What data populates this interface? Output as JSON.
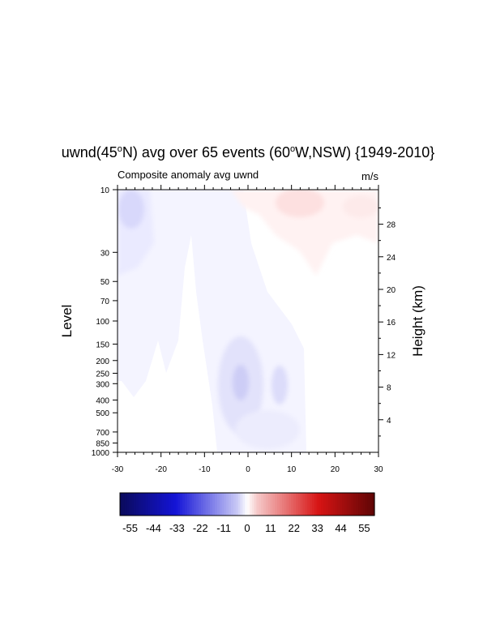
{
  "chart_data": {
    "type": "heatmap",
    "title_main": "uwnd(45",
    "title_sup1": "o",
    "title_mid": "N) avg over 65 events (60",
    "title_sup2": "o",
    "title_end": "W,NSW) {1949-2010}",
    "left_subtitle": "Composite anomaly avg uwnd",
    "right_subtitle": "m/s",
    "ylabel": "Level",
    "ylabel_right": "Height (km)",
    "xlim": [
      -30,
      30
    ],
    "x_ticks": [
      -30,
      -20,
      -10,
      0,
      10,
      20,
      30
    ],
    "x_tick_labels": [
      "-30",
      "-20",
      "-10",
      "0",
      "10",
      "20",
      "30"
    ],
    "ylim": [
      1000,
      10
    ],
    "y_scale": "log (pressure)",
    "y_ticks": [
      10,
      30,
      50,
      70,
      100,
      150,
      200,
      250,
      300,
      400,
      500,
      700,
      850,
      1000
    ],
    "y_tick_labels": [
      "10",
      "30",
      "50",
      "70",
      "100",
      "150",
      "200",
      "250",
      "300",
      "400",
      "500",
      "700",
      "850",
      "1000"
    ],
    "y_right_ticks_km": [
      4,
      8,
      12,
      16,
      20,
      24,
      28
    ],
    "y_right_tick_labels": [
      "4",
      "8",
      "12",
      "16",
      "20",
      "24",
      "28"
    ],
    "colorbar": {
      "min": -55,
      "max": 55,
      "colormap": "blue-white-red",
      "tick_values": [
        -55,
        -44,
        -33,
        -22,
        -11,
        0,
        11,
        22,
        33,
        44,
        55
      ],
      "tick_labels": [
        "-55",
        "-44",
        "-33",
        "-22",
        "-11",
        "0",
        "11",
        "22",
        "33",
        "44",
        "55"
      ]
    },
    "anomaly_regions": [
      {
        "lag": -26,
        "level": 15,
        "value": -4
      },
      {
        "lag": -18,
        "level": 30,
        "value": -2
      },
      {
        "lag": -2,
        "level": 300,
        "value": -6
      },
      {
        "lag": 7,
        "level": 300,
        "value": -4
      },
      {
        "lag": 5,
        "level": 550,
        "value": -3
      },
      {
        "lag": 15,
        "level": 14,
        "value": 3
      },
      {
        "lag": 22,
        "level": 15,
        "value": 2
      }
    ]
  }
}
